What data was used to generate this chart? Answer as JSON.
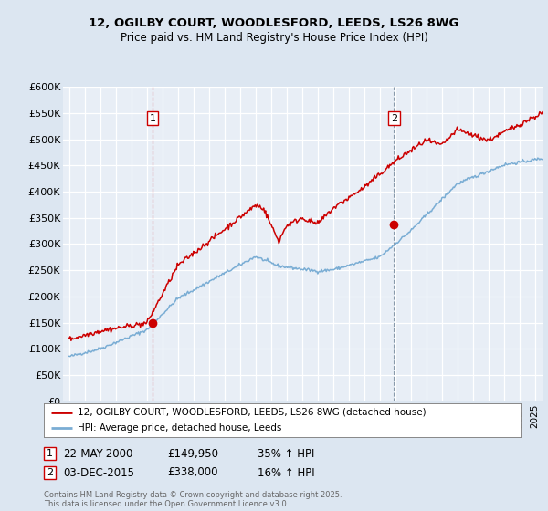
{
  "title1": "12, OGILBY COURT, WOODLESFORD, LEEDS, LS26 8WG",
  "title2": "Price paid vs. HM Land Registry's House Price Index (HPI)",
  "legend_line1": "12, OGILBY COURT, WOODLESFORD, LEEDS, LS26 8WG (detached house)",
  "legend_line2": "HPI: Average price, detached house, Leeds",
  "annotation1": {
    "label": "1",
    "date": "22-MAY-2000",
    "price": "£149,950",
    "pct": "35% ↑ HPI"
  },
  "annotation2": {
    "label": "2",
    "date": "03-DEC-2015",
    "price": "£338,000",
    "pct": "16% ↑ HPI"
  },
  "footnote": "Contains HM Land Registry data © Crown copyright and database right 2025.\nThis data is licensed under the Open Government Licence v3.0.",
  "price_color": "#cc0000",
  "hpi_color": "#7aadd4",
  "background_color": "#dce6f1",
  "plot_bg_color": "#e8eef6",
  "grid_color": "#c8d4e4",
  "ylim": [
    0,
    600000
  ],
  "yticks": [
    0,
    50000,
    100000,
    150000,
    200000,
    250000,
    300000,
    350000,
    400000,
    450000,
    500000,
    550000,
    600000
  ],
  "sale1_x": 2000.38,
  "sale1_y": 149950,
  "sale2_x": 2015.92,
  "sale2_y": 338000,
  "xmin": 1994.6,
  "xmax": 2025.5
}
